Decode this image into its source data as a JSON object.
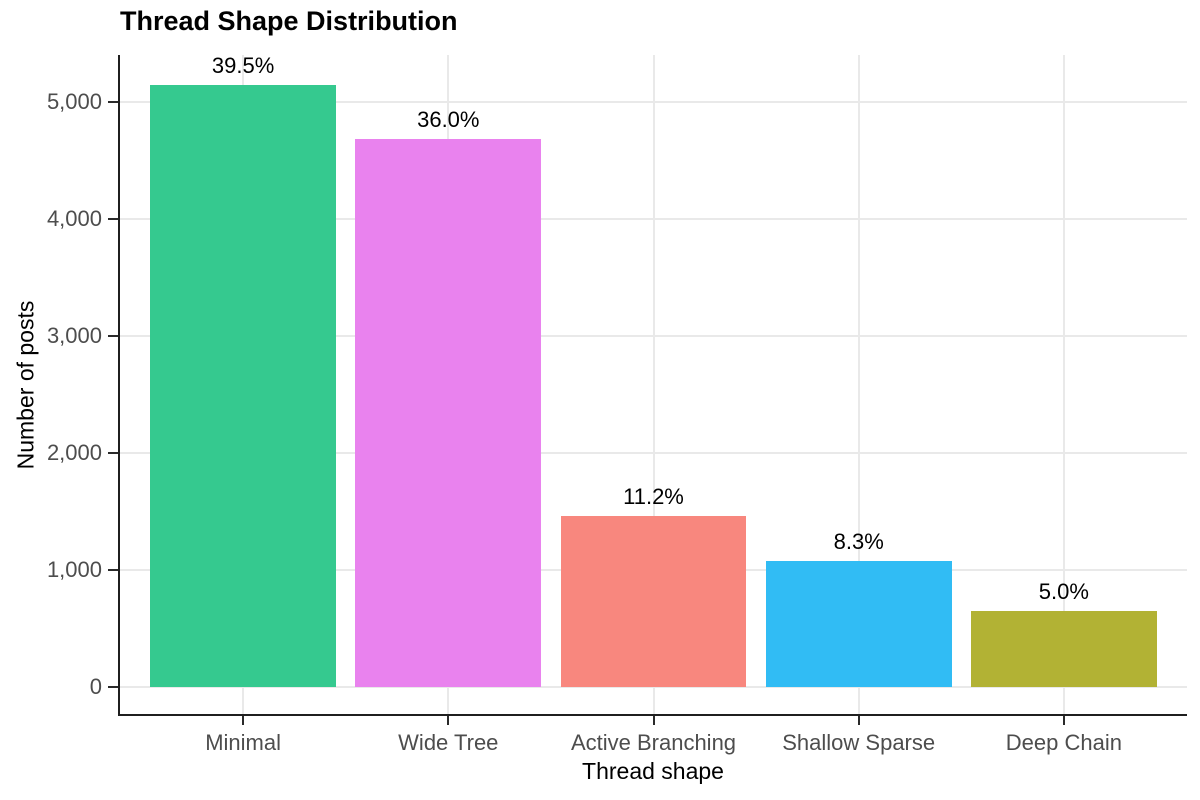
{
  "chart_data": {
    "type": "bar",
    "title": "Thread Shape Distribution",
    "xlabel": "Thread shape",
    "ylabel": "Number of posts",
    "categories": [
      "Minimal",
      "Wide Tree",
      "Active Branching",
      "Shallow Sparse",
      "Deep Chain"
    ],
    "values": [
      5139,
      4684,
      1457,
      1080,
      650
    ],
    "bar_labels": [
      "39.5%",
      "36.0%",
      "11.2%",
      "8.3%",
      "5.0%"
    ],
    "bar_colors": [
      "#35C98F",
      "#E982EE",
      "#F8877E",
      "#31BCF4",
      "#B2B234"
    ],
    "yticks": [
      0,
      1000,
      2000,
      3000,
      4000,
      5000
    ],
    "ytick_labels": [
      "0",
      "1,000",
      "2,000",
      "3,000",
      "4,000",
      "5,000"
    ],
    "ylim": [
      0,
      5400
    ],
    "grid": true,
    "legend": "none",
    "background_color": "#FFFFFF",
    "gridline_color": "#E9E9E9",
    "axis_line_color": "#1F1F1F",
    "tick_text_color": "#4D4D4D",
    "label_text_color": "#000000"
  }
}
